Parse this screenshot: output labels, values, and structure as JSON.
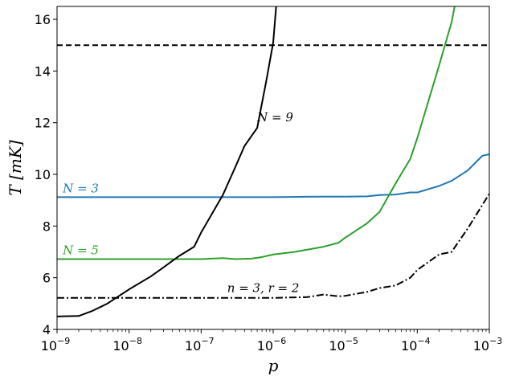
{
  "chart_data": {
    "type": "line",
    "title": "",
    "xlabel": "p",
    "ylabel": "T [mK]",
    "xscale": "log",
    "xlim": [
      1e-09,
      0.001
    ],
    "ylim": [
      4,
      16.5
    ],
    "x_tick_labels": [
      {
        "value": 1e-09,
        "base": "10",
        "exp": "−9"
      },
      {
        "value": 1e-08,
        "base": "10",
        "exp": "−8"
      },
      {
        "value": 1e-07,
        "base": "10",
        "exp": "−7"
      },
      {
        "value": 1e-06,
        "base": "10",
        "exp": "−6"
      },
      {
        "value": 1e-05,
        "base": "10",
        "exp": "−5"
      },
      {
        "value": 0.0001,
        "base": "10",
        "exp": "−4"
      },
      {
        "value": 0.001,
        "base": "10",
        "exp": "−3"
      }
    ],
    "y_ticks": [
      4,
      6,
      8,
      10,
      12,
      14,
      16
    ],
    "y_tick_labels": [
      "4",
      "6",
      "8",
      "10",
      "12",
      "14",
      "16"
    ],
    "grid": false,
    "series": [
      {
        "name": "N = 3",
        "color": "#1f77b4",
        "style": "solid",
        "x": [
          1e-09,
          1e-08,
          1e-07,
          1e-06,
          5e-06,
          1e-05,
          2e-05,
          3e-05,
          5e-05,
          8e-05,
          0.0001,
          0.0002,
          0.0003,
          0.0005,
          0.0008,
          0.001
        ],
        "y": [
          9.12,
          9.12,
          9.12,
          9.12,
          9.14,
          9.14,
          9.15,
          9.2,
          9.22,
          9.3,
          9.3,
          9.55,
          9.75,
          10.15,
          10.72,
          10.78
        ]
      },
      {
        "name": "N = 5",
        "color": "#2ca02c",
        "style": "solid",
        "x": [
          1e-09,
          1e-08,
          1e-07,
          2e-07,
          3e-07,
          5e-07,
          7e-07,
          1e-06,
          2e-06,
          5e-06,
          8e-06,
          1e-05,
          2e-05,
          3e-05,
          5e-05,
          8e-05,
          0.0001,
          0.0002,
          0.0003,
          0.00033
        ],
        "y": [
          6.72,
          6.72,
          6.72,
          6.76,
          6.72,
          6.74,
          6.8,
          6.9,
          7.0,
          7.2,
          7.35,
          7.55,
          8.1,
          8.55,
          9.65,
          10.6,
          11.4,
          14.2,
          15.9,
          16.5
        ]
      },
      {
        "name": "N = 9",
        "color": "#000000",
        "style": "solid",
        "x": [
          1e-09,
          2e-09,
          3e-09,
          5e-09,
          1e-08,
          2e-08,
          3e-08,
          5e-08,
          8e-08,
          1e-07,
          2e-07,
          3e-07,
          4e-07,
          6e-07,
          8e-07,
          1e-06,
          1.1e-06
        ],
        "y": [
          4.5,
          4.52,
          4.7,
          5.0,
          5.55,
          6.05,
          6.4,
          6.85,
          7.2,
          7.75,
          9.2,
          10.3,
          11.1,
          11.8,
          13.6,
          15.1,
          16.5
        ]
      },
      {
        "name": "n = 3, r = 2",
        "color": "#000000",
        "style": "dashdot",
        "x": [
          1e-09,
          1e-08,
          1e-07,
          1e-06,
          3e-06,
          5e-06,
          8e-06,
          1e-05,
          2e-05,
          3e-05,
          5e-05,
          8e-05,
          0.0001,
          0.0002,
          0.0003,
          0.0005,
          0.001
        ],
        "y": [
          5.22,
          5.22,
          5.22,
          5.22,
          5.25,
          5.35,
          5.28,
          5.3,
          5.45,
          5.6,
          5.7,
          6.0,
          6.3,
          6.9,
          7.0,
          7.9,
          9.25
        ]
      },
      {
        "name": "",
        "color": "#000000",
        "style": "dashed",
        "x": [
          1e-09,
          0.001
        ],
        "y": [
          15.0,
          15.0
        ]
      }
    ],
    "annotations": [
      {
        "text": "N = 3",
        "x": 1.2e-09,
        "y": 9.3,
        "color": "#1f77b4"
      },
      {
        "text": "N = 5",
        "x": 1.2e-09,
        "y": 6.9,
        "color": "#2ca02c"
      },
      {
        "text": "N = 9",
        "x": 6e-07,
        "y": 12.05,
        "color": "#000000"
      },
      {
        "text": "n = 3, r = 2",
        "x": 2.3e-07,
        "y": 5.45,
        "color": "#000000"
      }
    ]
  }
}
